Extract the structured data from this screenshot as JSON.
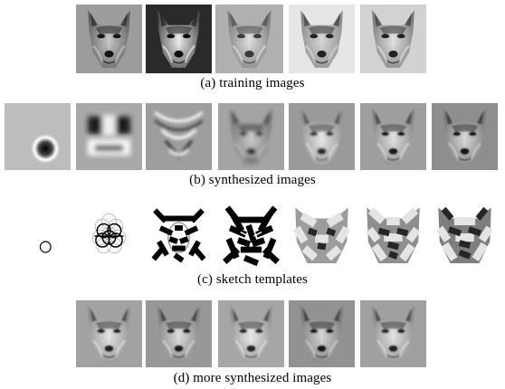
{
  "figure": {
    "rows": [
      {
        "id": "a",
        "caption": "(a) training images",
        "kind": "photo",
        "count": 5
      },
      {
        "id": "b",
        "caption": "(b) synthesized images",
        "kind": "synth",
        "count": 7
      },
      {
        "id": "c",
        "caption": "(c) sketch templates",
        "kind": "sketch",
        "count": 7
      },
      {
        "id": "d",
        "caption": "(d) more synthesized images",
        "kind": "synth",
        "count": 5
      }
    ],
    "palette": {
      "paper": "#ffffff",
      "gray_bg": "#b9b9b9",
      "ink": "#000000"
    }
  }
}
